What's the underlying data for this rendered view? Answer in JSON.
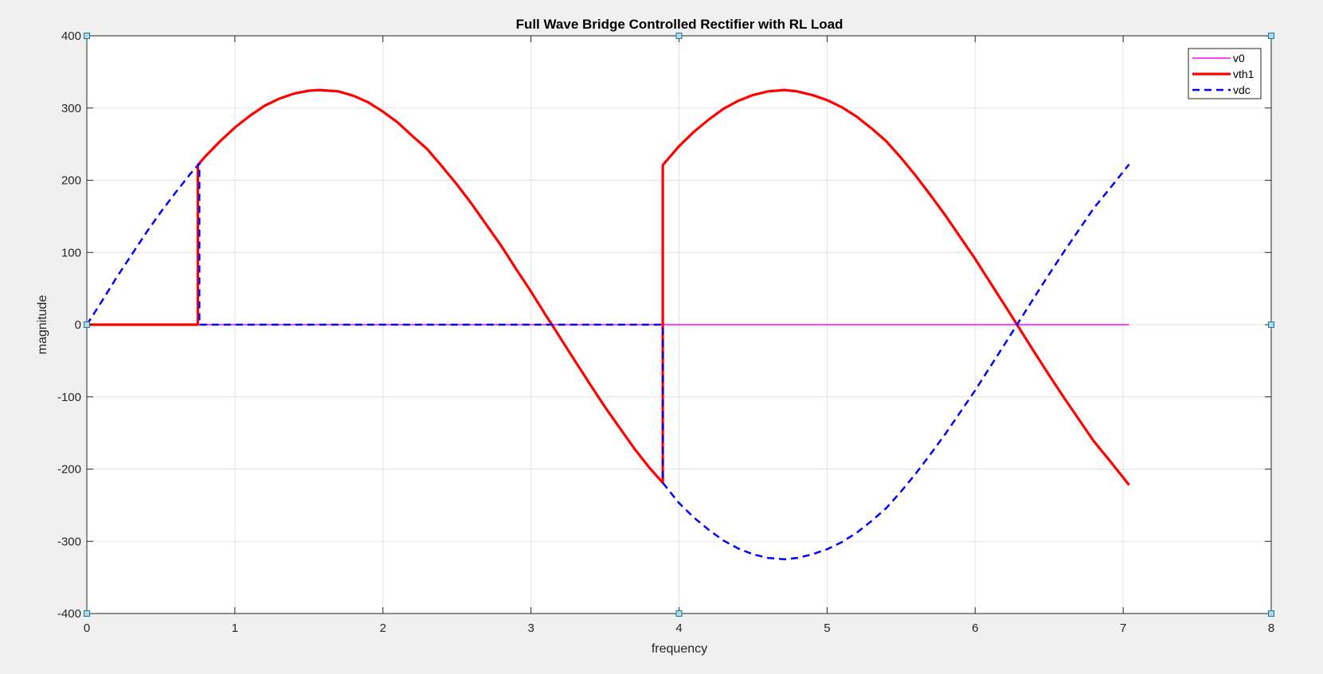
{
  "chart_data": {
    "type": "line",
    "title": "Full Wave Bridge Controlled Rectifier with RL Load",
    "xlabel": "frequency",
    "ylabel": "magnitude",
    "xlim": [
      0,
      8
    ],
    "ylim": [
      -400,
      400
    ],
    "x_ticks": [
      "0",
      "1",
      "2",
      "3",
      "4",
      "5",
      "6",
      "7",
      "8"
    ],
    "y_ticks": [
      "400",
      "300",
      "200",
      "100",
      "0",
      "-100",
      "-200",
      "-300",
      "-400"
    ],
    "grid": true,
    "legend_position": "top-right",
    "series": [
      {
        "name": "v0",
        "color": "#ff00ff",
        "style": "solid",
        "x": [
          0,
          7.04
        ],
        "y": [
          0,
          0
        ]
      },
      {
        "name": "vth1",
        "color": "#ff0000",
        "style": "solid",
        "x": [
          0,
          0.75,
          0.75,
          0.8,
          0.9,
          1.0,
          1.1,
          1.2,
          1.3,
          1.4,
          1.5,
          1.571,
          1.7,
          1.8,
          1.9,
          2.0,
          2.1,
          2.2,
          2.3,
          2.4,
          2.5,
          2.6,
          2.7,
          2.8,
          2.9,
          3.0,
          3.1,
          3.142,
          3.2,
          3.3,
          3.4,
          3.5,
          3.6,
          3.7,
          3.8,
          3.89,
          3.89,
          4.0,
          4.1,
          4.2,
          4.3,
          4.4,
          4.5,
          4.6,
          4.712,
          4.8,
          4.9,
          5.0,
          5.1,
          5.2,
          5.3,
          5.4,
          5.5,
          5.6,
          5.7,
          5.8,
          5.9,
          6.0,
          6.1,
          6.2,
          6.283,
          6.4,
          6.5,
          6.6,
          6.7,
          6.8,
          6.9,
          7.04
        ],
        "y": [
          0,
          0,
          221,
          233,
          254,
          273,
          289,
          303,
          313,
          320,
          324,
          325,
          323,
          317,
          308,
          295,
          280,
          261,
          243,
          219,
          194,
          167,
          138,
          109,
          77,
          46,
          13,
          0,
          -19,
          -51,
          -83,
          -114,
          -143,
          -172,
          -198,
          -219,
          221,
          247,
          267,
          284,
          299,
          310,
          318,
          323,
          325,
          323,
          318,
          311,
          301,
          288,
          272,
          254,
          231,
          206,
          179,
          151,
          121,
          91,
          59,
          27,
          0,
          -38,
          -70,
          -101,
          -131,
          -161,
          -186,
          -222
        ]
      },
      {
        "name": "vdc",
        "color": "#0000ff",
        "style": "dashed",
        "x": [
          0,
          0.1,
          0.2,
          0.3,
          0.4,
          0.5,
          0.6,
          0.7,
          0.76,
          0.76,
          3.89,
          3.89,
          4.0,
          4.1,
          4.2,
          4.3,
          4.4,
          4.5,
          4.6,
          4.712,
          4.8,
          4.9,
          5.0,
          5.1,
          5.2,
          5.3,
          5.4,
          5.5,
          5.6,
          5.7,
          5.8,
          5.9,
          6.0,
          6.1,
          6.2,
          6.283,
          6.4,
          6.5,
          6.6,
          6.7,
          6.8,
          6.9,
          7.04
        ],
        "y": [
          0,
          32,
          65,
          96,
          127,
          156,
          183,
          209,
          223,
          0,
          0,
          -219,
          -247,
          -267,
          -284,
          -299,
          -310,
          -318,
          -323,
          -325,
          -323,
          -318,
          -311,
          -301,
          -288,
          -272,
          -254,
          -231,
          -206,
          -179,
          -151,
          -121,
          -91,
          -59,
          -27,
          0,
          38,
          70,
          101,
          131,
          161,
          186,
          222
        ]
      }
    ]
  }
}
